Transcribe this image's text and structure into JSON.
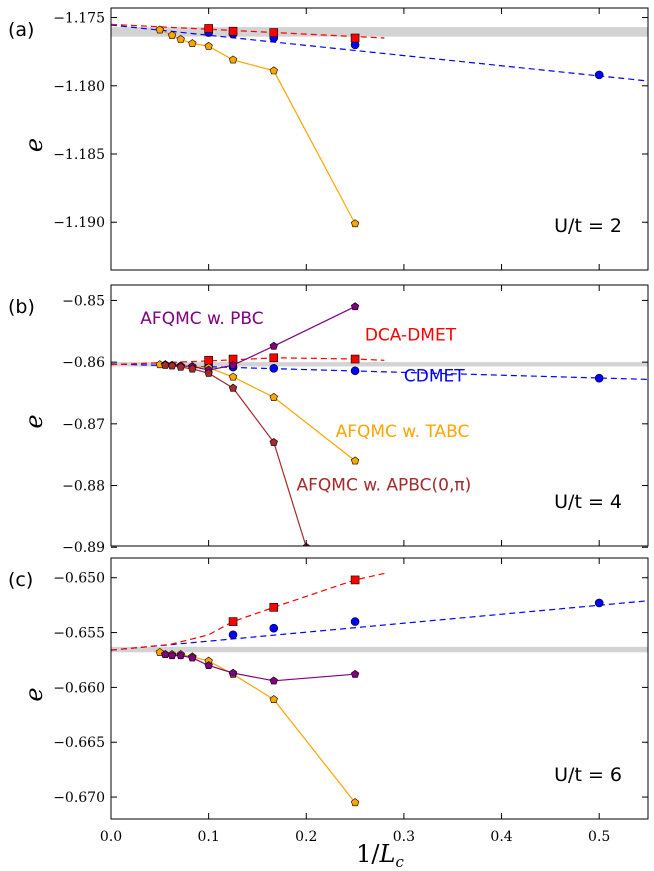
{
  "figure": {
    "xlabel_text": "1/",
    "xlabel_var": "L",
    "xlabel_sub": "c",
    "ylabel": "e",
    "xticks": [
      "0.0",
      "0.1",
      "0.2",
      "0.3",
      "0.4",
      "0.5"
    ]
  },
  "colors": {
    "cdmet": "#0000ff",
    "dca": "#ff0000",
    "tabc": "#ffa500",
    "pbc": "#800080",
    "apbc": "#a52a2a",
    "band": "#d3d3d3"
  },
  "chart_data": [
    {
      "type": "line",
      "panel_label": "(a)",
      "ut_label": "U/t = 2",
      "xlim": [
        0,
        0.55
      ],
      "ylim": [
        -1.1935,
        -1.1743
      ],
      "yticks": [
        -1.175,
        -1.18,
        -1.185,
        -1.19
      ],
      "ytick_labels": [
        "−1.175",
        "−1.180",
        "−1.185",
        "−1.190"
      ],
      "band": [
        -1.1764,
        -1.1757
      ],
      "series": [
        {
          "key": "cdmet",
          "marker": "circle",
          "x": [
            0.1,
            0.125,
            0.1667,
            0.25,
            0.5
          ],
          "y": [
            -1.1761,
            -1.1762,
            -1.1765,
            -1.177,
            -1.1792
          ],
          "fit": {
            "from": 0,
            "to": 0.55,
            "y0": -1.17555,
            "y1": -1.17965
          }
        },
        {
          "key": "dca",
          "marker": "square",
          "x": [
            0.1,
            0.125,
            0.1667,
            0.25
          ],
          "y": [
            -1.1758,
            -1.176,
            -1.1761,
            -1.1765
          ],
          "fit": {
            "from": 0,
            "to": 0.28,
            "y0": -1.1755,
            "y1": -1.1765
          }
        },
        {
          "key": "tabc",
          "marker": "pentagon",
          "x": [
            0.05,
            0.0625,
            0.0714,
            0.0833,
            0.1,
            0.125,
            0.1667,
            0.25
          ],
          "y": [
            -1.1759,
            -1.1763,
            -1.1766,
            -1.1769,
            -1.1771,
            -1.1781,
            -1.1789,
            -1.1901
          ]
        }
      ]
    },
    {
      "type": "line",
      "panel_label": "(b)",
      "ut_label": "U/t = 4",
      "xlim": [
        0,
        0.55
      ],
      "ylim": [
        -0.8898,
        -0.8475
      ],
      "yticks": [
        -0.85,
        -0.86,
        -0.87,
        -0.88,
        -0.89
      ],
      "ytick_labels": [
        "−0.85",
        "−0.86",
        "−0.87",
        "−0.88",
        "−0.89"
      ],
      "band": [
        -0.8607,
        -0.86
      ],
      "annotations": [
        {
          "key": "pbc",
          "text": "AFQMC w. PBC",
          "x": 0.03,
          "y": -0.8538
        },
        {
          "key": "dca",
          "text": "DCA-DMET",
          "x": 0.26,
          "y": -0.8565
        },
        {
          "key": "cdmet",
          "text": "CDMET",
          "x": 0.3,
          "y": -0.8631
        },
        {
          "key": "tabc",
          "text": "AFQMC w. TABC",
          "x": 0.23,
          "y": -0.8721
        },
        {
          "key": "apbc",
          "text": "AFQMC w. APBC(0,π)",
          "x": 0.19,
          "y": -0.8808
        }
      ],
      "series": [
        {
          "key": "cdmet",
          "marker": "circle",
          "x": [
            0.1,
            0.125,
            0.1667,
            0.25,
            0.5
          ],
          "y": [
            -0.8607,
            -0.8608,
            -0.861,
            -0.8614,
            -0.8626
          ],
          "fit": {
            "from": 0,
            "to": 0.55,
            "y0": -0.8603,
            "y1": -0.8628
          }
        },
        {
          "key": "dca",
          "marker": "square",
          "x": [
            0.1,
            0.125,
            0.1667,
            0.25
          ],
          "y": [
            -0.8597,
            -0.8595,
            -0.8593,
            -0.8595
          ],
          "fit": {
            "from": 0,
            "to": 0.28,
            "curve": [
              [
                0,
                -0.8604
              ],
              [
                0.1,
                -0.8598
              ],
              [
                0.17,
                -0.8593
              ],
              [
                0.25,
                -0.8595
              ],
              [
                0.28,
                -0.8597
              ]
            ]
          }
        },
        {
          "key": "tabc",
          "marker": "pentagon",
          "x": [
            0.05,
            0.0556,
            0.0625,
            0.0714,
            0.0833,
            0.1,
            0.125,
            0.1667,
            0.25
          ],
          "y": [
            -0.8604,
            -0.8604,
            -0.8605,
            -0.8606,
            -0.8607,
            -0.8609,
            -0.8624,
            -0.8657,
            -0.876
          ]
        },
        {
          "key": "pbc",
          "marker": "pentagon",
          "x": [
            0.0556,
            0.0625,
            0.0714,
            0.0833,
            0.1,
            0.125,
            0.1667,
            0.25
          ],
          "y": [
            -0.8604,
            -0.8605,
            -0.8606,
            -0.8607,
            -0.8613,
            -0.8605,
            -0.8574,
            -0.851
          ]
        },
        {
          "key": "apbc",
          "marker": "pentagon",
          "x": [
            0.0556,
            0.0625,
            0.0714,
            0.0833,
            0.1,
            0.125,
            0.1667,
            0.2
          ],
          "y": [
            -0.8605,
            -0.8606,
            -0.8608,
            -0.8611,
            -0.8618,
            -0.8642,
            -0.873,
            -0.89
          ]
        }
      ]
    },
    {
      "type": "line",
      "panel_label": "(c)",
      "ut_label": "U/t = 6",
      "xlim": [
        0,
        0.55
      ],
      "ylim": [
        -0.672,
        -0.6482
      ],
      "yticks": [
        -0.65,
        -0.655,
        -0.66,
        -0.665,
        -0.67
      ],
      "ytick_labels": [
        "−0.650",
        "−0.655",
        "−0.660",
        "−0.665",
        "−0.670"
      ],
      "band": [
        -0.6568,
        -0.6563
      ],
      "series": [
        {
          "key": "cdmet",
          "marker": "circle",
          "x": [
            0.125,
            0.1667,
            0.25,
            0.5
          ],
          "y": [
            -0.6552,
            -0.6546,
            -0.654,
            -0.6523
          ],
          "fit": {
            "from": 0,
            "to": 0.55,
            "y0": -0.6566,
            "y1": -0.6521
          }
        },
        {
          "key": "dca",
          "marker": "square",
          "x": [
            0.125,
            0.1667,
            0.25
          ],
          "y": [
            -0.654,
            -0.6527,
            -0.6502
          ],
          "fit": {
            "from": 0,
            "to": 0.28,
            "curve": [
              [
                0,
                -0.6566
              ],
              [
                0.06,
                -0.6561
              ],
              [
                0.1,
                -0.6552
              ],
              [
                0.125,
                -0.654
              ],
              [
                0.1667,
                -0.6527
              ],
              [
                0.25,
                -0.6502
              ],
              [
                0.28,
                -0.6496
              ]
            ]
          }
        },
        {
          "key": "tabc",
          "marker": "pentagon",
          "x": [
            0.05,
            0.0556,
            0.0625,
            0.0714,
            0.0833,
            0.1,
            0.125,
            0.1667,
            0.25
          ],
          "y": [
            -0.6568,
            -0.657,
            -0.657,
            -0.657,
            -0.6572,
            -0.6576,
            -0.6588,
            -0.6611,
            -0.6705
          ]
        },
        {
          "key": "pbc",
          "marker": "pentagon",
          "x": [
            0.0556,
            0.0625,
            0.0714,
            0.0833,
            0.1,
            0.125,
            0.1667,
            0.25
          ],
          "y": [
            -0.657,
            -0.6571,
            -0.6571,
            -0.6573,
            -0.658,
            -0.6587,
            -0.6594,
            -0.6588
          ]
        }
      ]
    }
  ]
}
